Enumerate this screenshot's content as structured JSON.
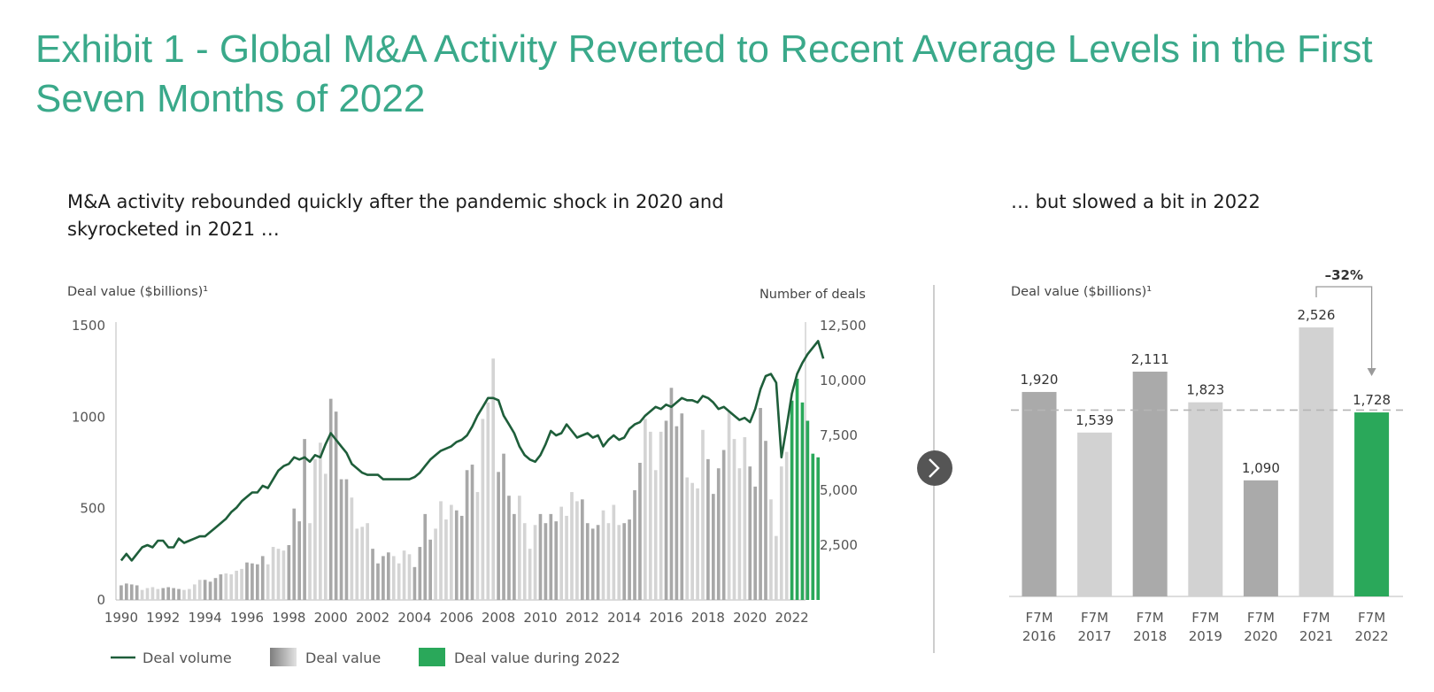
{
  "title": "Exhibit 1 - Global M&A Activity Reverted to Recent Average Levels in the First Seven Months of 2022",
  "left_subtitle": "M&A activity rebounded quickly after the pandemic shock in 2020 and skyrocketed in 2021 …",
  "right_subtitle": "… but slowed a bit in 2022",
  "arrow_icon": "chevron-right-icon",
  "colors": {
    "title": "#3aa98a",
    "line": "#1e5e3a",
    "highlight": "#2aa85a",
    "bar_dark": "#a8a8a8",
    "bar_light": "#d4d4d4"
  },
  "chart_data": [
    {
      "type": "bar",
      "ylabel_left": "Deal value ($billions)¹",
      "ylabel_right": "Number of deals",
      "ylim_left": [
        0,
        1500
      ],
      "ylim_right": [
        0,
        12500
      ],
      "yticks_left": [
        0,
        500,
        1000,
        1500
      ],
      "yticks_right": [
        "2,500",
        "5,000",
        "7,500",
        "10,000",
        "12,500"
      ],
      "yticks_right_values": [
        2500,
        5000,
        7500,
        10000,
        12500
      ],
      "xticks": [
        "1990",
        "1992",
        "1994",
        "1996",
        "1998",
        "2000",
        "2002",
        "2004",
        "2006",
        "2008",
        "2010",
        "2012",
        "2014",
        "2016",
        "2018",
        "2020",
        "2022"
      ],
      "x_range": [
        1989.75,
        2022.65
      ],
      "legend": [
        "Deal volume",
        "Deal value",
        "Deal value during 2022"
      ],
      "legend_position": "bottom",
      "series": [
        {
          "name": "Deal value",
          "x_start": 1990.0,
          "step": 0.25,
          "values": [
            80,
            90,
            85,
            80,
            55,
            65,
            70,
            60,
            65,
            70,
            65,
            60,
            55,
            60,
            85,
            110,
            110,
            100,
            120,
            140,
            145,
            140,
            160,
            170,
            205,
            200,
            195,
            240,
            195,
            290,
            280,
            270,
            300,
            500,
            430,
            880,
            420,
            770,
            860,
            690,
            1100,
            1030,
            660,
            660,
            560,
            390,
            400,
            420,
            280,
            200,
            240,
            260,
            240,
            200,
            270,
            250,
            180,
            290,
            470,
            330,
            390,
            540,
            440,
            520,
            490,
            460,
            710,
            740,
            590,
            990,
            1080,
            1320,
            700,
            800,
            570,
            470,
            570,
            420,
            280,
            410,
            470,
            420,
            470,
            430,
            510,
            460,
            590,
            540,
            550,
            420,
            390,
            410,
            490,
            420,
            520,
            410,
            420,
            440,
            600,
            750,
            990,
            920,
            710,
            920,
            980,
            1160,
            950,
            1020,
            670,
            640,
            610,
            930,
            770,
            580,
            720,
            820,
            1030,
            880,
            720,
            890,
            730,
            620,
            1050,
            870,
            550,
            350,
            730,
            810,
            1090,
            1210,
            1080,
            980,
            800,
            780
          ],
          "highlight_from_index": 128
        },
        {
          "name": "Deal volume",
          "x_start": 1990.0,
          "step": 0.25,
          "values": [
            1800,
            2100,
            1800,
            2100,
            2400,
            2500,
            2400,
            2700,
            2700,
            2400,
            2400,
            2800,
            2600,
            2700,
            2800,
            2900,
            2900,
            3100,
            3300,
            3500,
            3700,
            4000,
            4200,
            4500,
            4700,
            4900,
            4900,
            5200,
            5100,
            5500,
            5900,
            6100,
            6200,
            6500,
            6400,
            6500,
            6300,
            6600,
            6500,
            7100,
            7600,
            7300,
            7000,
            6700,
            6200,
            6000,
            5800,
            5700,
            5700,
            5700,
            5500,
            5500,
            5500,
            5500,
            5500,
            5500,
            5600,
            5800,
            6100,
            6400,
            6600,
            6800,
            6900,
            7000,
            7200,
            7300,
            7500,
            7900,
            8400,
            8800,
            9200,
            9200,
            9100,
            8400,
            8000,
            7600,
            7000,
            6600,
            6400,
            6300,
            6600,
            7100,
            7700,
            7500,
            7600,
            8000,
            7700,
            7400,
            7500,
            7600,
            7400,
            7500,
            7000,
            7300,
            7500,
            7300,
            7400,
            7800,
            8000,
            8100,
            8400,
            8600,
            8800,
            8700,
            8900,
            8800,
            9000,
            9200,
            9100,
            9100,
            9000,
            9300,
            9200,
            9000,
            8700,
            8800,
            8600,
            8400,
            8200,
            8300,
            8100,
            8700,
            9600,
            10200,
            10300,
            9900,
            6500,
            7900,
            9400,
            10300,
            10800,
            11200,
            11500,
            11800,
            11000
          ]
        }
      ]
    },
    {
      "type": "bar",
      "ylabel": "Deal value ($billions)¹",
      "categories": [
        "F7M\n2016",
        "F7M\n2017",
        "F7M\n2018",
        "F7M\n2019",
        "F7M\n2020",
        "F7M\n2021",
        "F7M\n2022"
      ],
      "values": [
        1920,
        1539,
        2111,
        1823,
        1090,
        2526,
        1728
      ],
      "value_labels": [
        "1,920",
        "1,539",
        "2,111",
        "1,823",
        "1,090",
        "2,526",
        "1,728"
      ],
      "average_line": 1750,
      "annotation": "–32%",
      "ylim": [
        0,
        2900
      ]
    }
  ]
}
